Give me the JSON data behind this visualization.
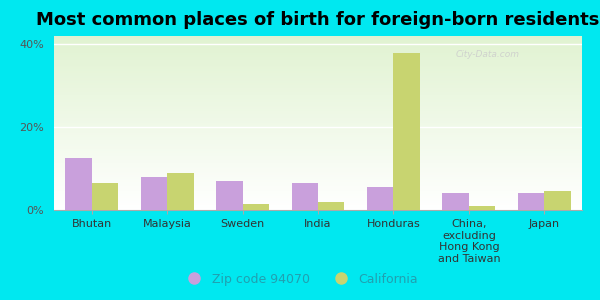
{
  "title": "Most common places of birth for foreign-born residents",
  "categories": [
    "Bhutan",
    "Malaysia",
    "Sweden",
    "India",
    "Honduras",
    "China,\nexcluding\nHong Kong\nand Taiwan",
    "Japan"
  ],
  "zip_values": [
    12.5,
    8.0,
    7.0,
    6.5,
    5.5,
    4.0,
    4.0
  ],
  "ca_values": [
    6.5,
    9.0,
    1.5,
    2.0,
    38.0,
    1.0,
    4.5
  ],
  "zip_color": "#c9a0dc",
  "ca_color": "#c8d470",
  "background_outer": "#00e8f0",
  "ylim": [
    0,
    42
  ],
  "yticks": [
    0,
    20,
    40
  ],
  "ytick_labels": [
    "0%",
    "20%",
    "40%"
  ],
  "legend_zip_label": "Zip code 94070",
  "legend_ca_label": "California",
  "bar_width": 0.35,
  "title_fontsize": 13,
  "tick_fontsize": 8,
  "legend_fontsize": 9,
  "watermark": "City-Data.com"
}
